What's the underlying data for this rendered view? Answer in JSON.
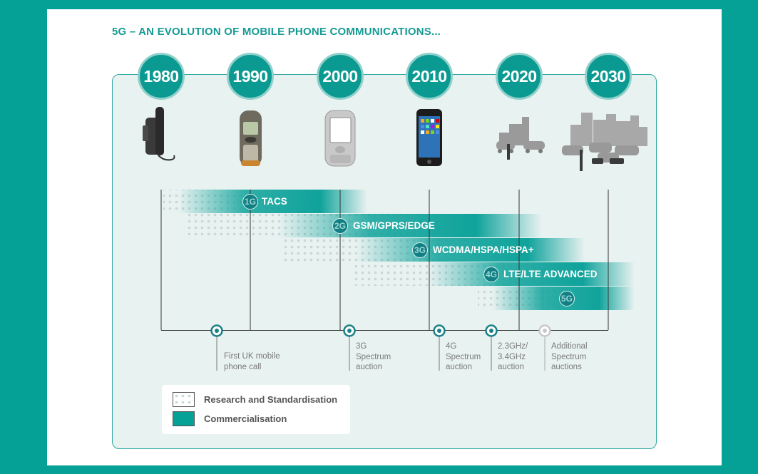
{
  "title": "5G – AN EVOLUTION OF MOBILE PHONE COMMUNICATIONS...",
  "years": [
    "1980",
    "1990",
    "2000",
    "2010",
    "2020",
    "2030"
  ],
  "images": [
    {
      "icon": "car-phone-icon"
    },
    {
      "icon": "nokia-phone-icon"
    },
    {
      "icon": "smartphone-2000-icon"
    },
    {
      "icon": "iphone-icon"
    },
    {
      "icon": "small-city-icon"
    },
    {
      "icon": "large-city-icon"
    }
  ],
  "generations": [
    {
      "badge": "1G",
      "label": "TACS"
    },
    {
      "badge": "2G",
      "label": "GSM/GPRS/EDGE"
    },
    {
      "badge": "3G",
      "label": "WCDMA/HSPA/HSPA+"
    },
    {
      "badge": "4G",
      "label": "LTE/LTE ADVANCED"
    },
    {
      "badge": "5G",
      "label": ""
    }
  ],
  "milestones": [
    {
      "lines": [
        "First UK mobile",
        "phone call"
      ]
    },
    {
      "lines": [
        "3G",
        "Spectrum",
        "auction"
      ]
    },
    {
      "lines": [
        "4G",
        "Spectrum",
        "auction"
      ]
    },
    {
      "lines": [
        "2.3GHz/",
        "3.4GHz",
        "auction"
      ]
    },
    {
      "lines": [
        "Additional",
        "Spectrum",
        "auctions"
      ]
    }
  ],
  "legend": {
    "research": "Research and Standardisation",
    "commercial": "Commercialisation"
  },
  "colors": {
    "teal": "#05a197",
    "band": "#0fa39b",
    "dot": "#c8d9d7",
    "panel": "#e8f2f1"
  }
}
